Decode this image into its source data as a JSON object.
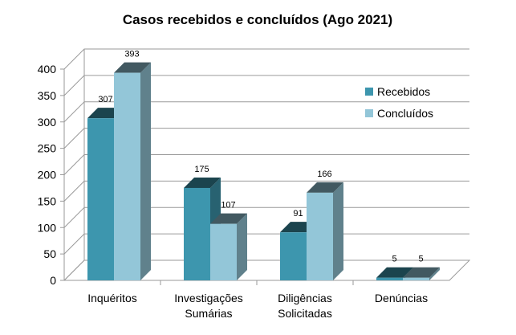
{
  "chart_data": {
    "type": "bar",
    "title": "Casos recebidos e concluídos (Ago 2021)",
    "categories": [
      "Inquéritos",
      "Investigações Sumárias",
      "Diligências Solicitadas",
      "Denúncias"
    ],
    "category_lines": [
      [
        "Inquéritos"
      ],
      [
        "Investigações",
        "Sumárias"
      ],
      [
        "Diligências",
        "Solicitadas"
      ],
      [
        "Denúncias"
      ]
    ],
    "series": [
      {
        "name": "Recebidos",
        "values": [
          307,
          175,
          91,
          5
        ],
        "color": "#3d96ae"
      },
      {
        "name": "Concluídos",
        "values": [
          393,
          107,
          166,
          5
        ],
        "color": "#93c6d8"
      }
    ],
    "ylim": [
      0,
      400
    ],
    "yticks": [
      "0",
      "50",
      "100",
      "150",
      "200",
      "250",
      "300",
      "350",
      "400"
    ],
    "grid": true,
    "legend_position": "right",
    "style": "3d-bar"
  }
}
